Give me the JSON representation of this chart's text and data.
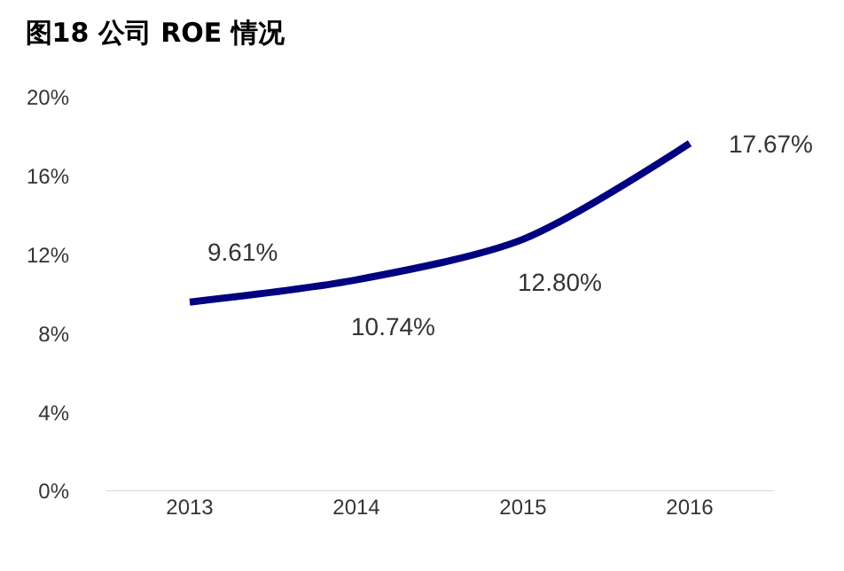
{
  "chart_data": {
    "type": "line",
    "title": "图18 公司 ROE 情况",
    "categories": [
      "2013",
      "2014",
      "2015",
      "2016"
    ],
    "series": [
      {
        "color": "#000080",
        "values": [
          9.61,
          10.74,
          12.8,
          17.67
        ],
        "value_labels": [
          "9.61%",
          "10.74%",
          "12.80%",
          "17.67%"
        ]
      }
    ],
    "ylim": [
      0,
      20
    ],
    "yticks": [
      {
        "value": 0,
        "label": "0%"
      },
      {
        "value": 4,
        "label": "4%"
      },
      {
        "value": 8,
        "label": "8%"
      },
      {
        "value": 12,
        "label": "12%"
      },
      {
        "value": 16,
        "label": "16%"
      },
      {
        "value": 20,
        "label": "20%"
      }
    ],
    "grid": false,
    "legend": false,
    "marker": "none",
    "line_style": "solid"
  }
}
